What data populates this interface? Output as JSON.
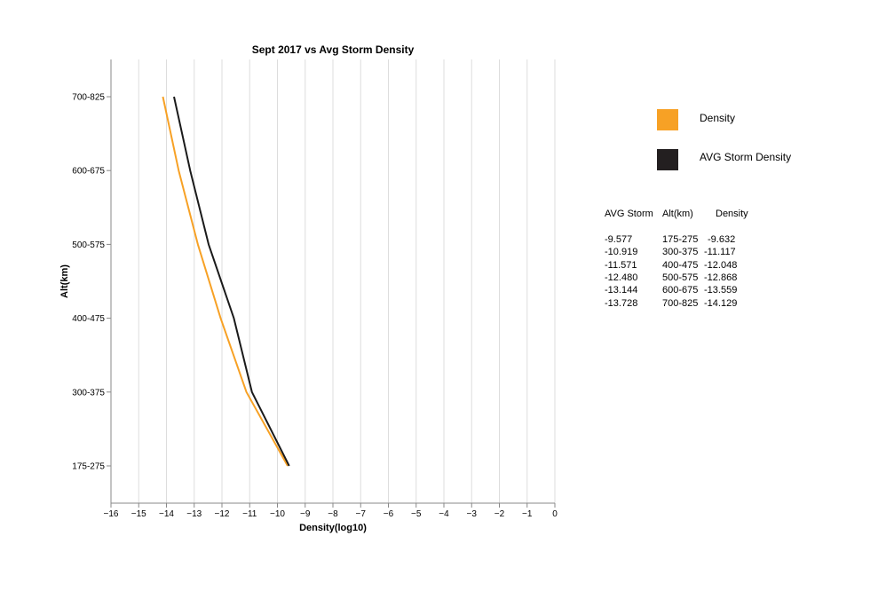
{
  "chart_data": {
    "type": "line",
    "title": "Sept 2017 vs Avg Storm Density",
    "xlabel": "Density(log10)",
    "ylabel": "Alt(km)",
    "xlim": [
      -16,
      0
    ],
    "x_ticks": [
      "−16",
      "−15",
      "−14",
      "−13",
      "−12",
      "−11",
      "−10",
      "−9",
      "−8",
      "−7",
      "−6",
      "−5",
      "−4",
      "−3",
      "−2",
      "−1",
      "0"
    ],
    "categories": [
      "175-275",
      "300-375",
      "400-475",
      "500-575",
      "600-675",
      "700-825"
    ],
    "grid": "vertical",
    "legend_position": "right",
    "series": [
      {
        "name": "Density",
        "color": "#f7a125",
        "values": [
          -9.632,
          -11.117,
          -12.048,
          -12.868,
          -13.559,
          -14.129
        ]
      },
      {
        "name": "AVG Storm Density",
        "color": "#1a1a1a",
        "values": [
          -9.577,
          -10.919,
          -11.571,
          -12.48,
          -13.144,
          -13.728
        ]
      }
    ]
  },
  "legend": {
    "items": [
      {
        "label": "Density",
        "color": "#f7a125"
      },
      {
        "label": "AVG Storm Density",
        "color": "#231f20"
      }
    ]
  },
  "table": {
    "headers": [
      "AVG Storm",
      "Alt(km)",
      "Density"
    ],
    "rows": [
      [
        "-9.577",
        "175-275",
        "-9.632"
      ],
      [
        "-10.919",
        "300-375",
        "-11.117"
      ],
      [
        "-11.571",
        "400-475",
        "-12.048"
      ],
      [
        "-12.480",
        "500-575",
        "-12.868"
      ],
      [
        "-13.144",
        "600-675",
        "-13.559"
      ],
      [
        "-13.728",
        "700-825",
        "-14.129"
      ]
    ]
  }
}
